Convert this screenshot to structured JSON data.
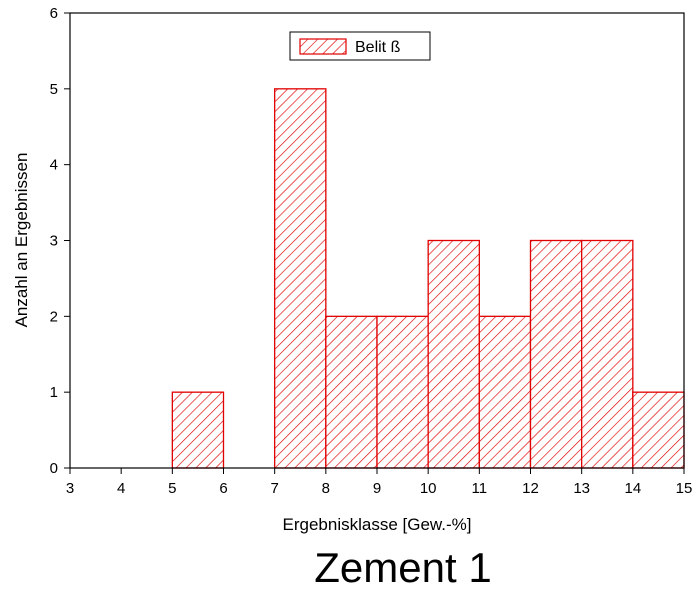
{
  "chart_data": {
    "type": "bar",
    "title": "",
    "xlabel": "Ergebnisklasse [Gew.-%]",
    "ylabel": "Anzahl an Ergebnissen",
    "caption": "Zement 1",
    "xlim": [
      3,
      15
    ],
    "ylim": [
      0,
      6
    ],
    "x_ticks": [
      "3",
      "4",
      "5",
      "6",
      "7",
      "8",
      "9",
      "10",
      "11",
      "12",
      "13",
      "14",
      "15"
    ],
    "y_ticks": [
      "0",
      "1",
      "2",
      "3",
      "4",
      "5",
      "6"
    ],
    "grid": false,
    "legend_position": "top-center",
    "series": [
      {
        "name": "Belit ß",
        "color": "#e00000",
        "pattern": "diagonal-hatch",
        "bins": [
          {
            "from": 5,
            "to": 6,
            "value": 1
          },
          {
            "from": 7,
            "to": 8,
            "value": 5
          },
          {
            "from": 8,
            "to": 9,
            "value": 2
          },
          {
            "from": 9,
            "to": 10,
            "value": 2
          },
          {
            "from": 10,
            "to": 11,
            "value": 3
          },
          {
            "from": 11,
            "to": 12,
            "value": 2
          },
          {
            "from": 12,
            "to": 13,
            "value": 3
          },
          {
            "from": 13,
            "to": 14,
            "value": 3
          },
          {
            "from": 14,
            "to": 15,
            "value": 1
          }
        ]
      }
    ]
  }
}
